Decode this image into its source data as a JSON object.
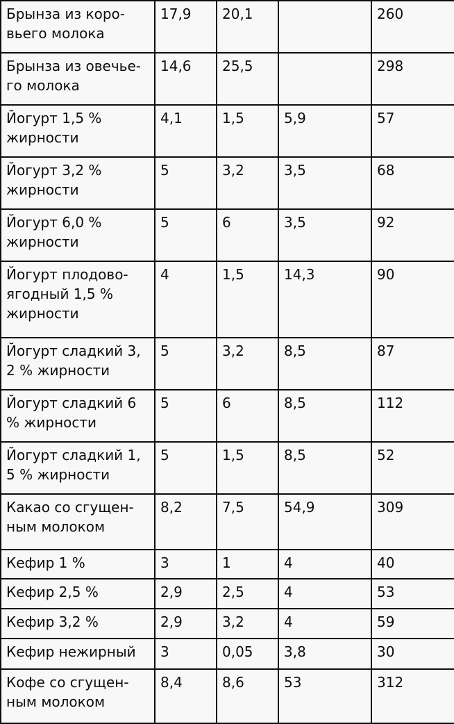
{
  "colors": {
    "page_background": "#f8f8f8",
    "border": "#0e0e0e",
    "text": "#0d0d0d"
  },
  "table": {
    "rows": [
      {
        "product": "Брынза из коро-\nвьего молока",
        "values": [
          "17,9",
          "20,1",
          "",
          "260"
        ]
      },
      {
        "product": "Брынза из овечье-\nго молока",
        "values": [
          "14,6",
          "25,5",
          "",
          "298"
        ]
      },
      {
        "product": "Йогурт 1,5 %\nжирности",
        "values": [
          "4,1",
          "1,5",
          "5,9",
          "57"
        ]
      },
      {
        "product": "Йогурт 3,2 %\nжирности",
        "values": [
          "5",
          "3,2",
          "3,5",
          "68"
        ]
      },
      {
        "product": "Йогурт 6,0 %\nжирности",
        "values": [
          "5",
          "6",
          "3,5",
          "92"
        ]
      },
      {
        "product": "Йогурт плодово-\nягодный 1,5 %\nжирности",
        "values": [
          "4",
          "1,5",
          "14,3",
          "90"
        ]
      },
      {
        "product": "Йогурт сладкий 3,\n2 % жирности",
        "values": [
          "5",
          "3,2",
          "8,5",
          "87"
        ]
      },
      {
        "product": "Йогурт сладкий 6\n% жирности",
        "values": [
          "5",
          "6",
          "8,5",
          "112"
        ]
      },
      {
        "product": "Йогурт сладкий 1,\n5 % жирности",
        "values": [
          "5",
          "1,5",
          "8,5",
          "52"
        ]
      },
      {
        "product": "Какао со сгущен-\nным молоком",
        "values": [
          "8,2",
          "7,5",
          "54,9",
          "309"
        ]
      },
      {
        "product": "Кефир 1 %",
        "values": [
          "3",
          "1",
          "4",
          "40"
        ]
      },
      {
        "product": "Кефир 2,5 %",
        "values": [
          "2,9",
          "2,5",
          "4",
          "53"
        ]
      },
      {
        "product": "Кефир 3,2 %",
        "values": [
          "2,9",
          "3,2",
          "4",
          "59"
        ]
      },
      {
        "product": "Кефир нежирный",
        "values": [
          "3",
          "0,05",
          "3,8",
          "30"
        ]
      },
      {
        "product": "Кофе со сгущен-\nным молоком",
        "values": [
          "8,4",
          "8,6",
          "53",
          "312"
        ]
      }
    ]
  }
}
